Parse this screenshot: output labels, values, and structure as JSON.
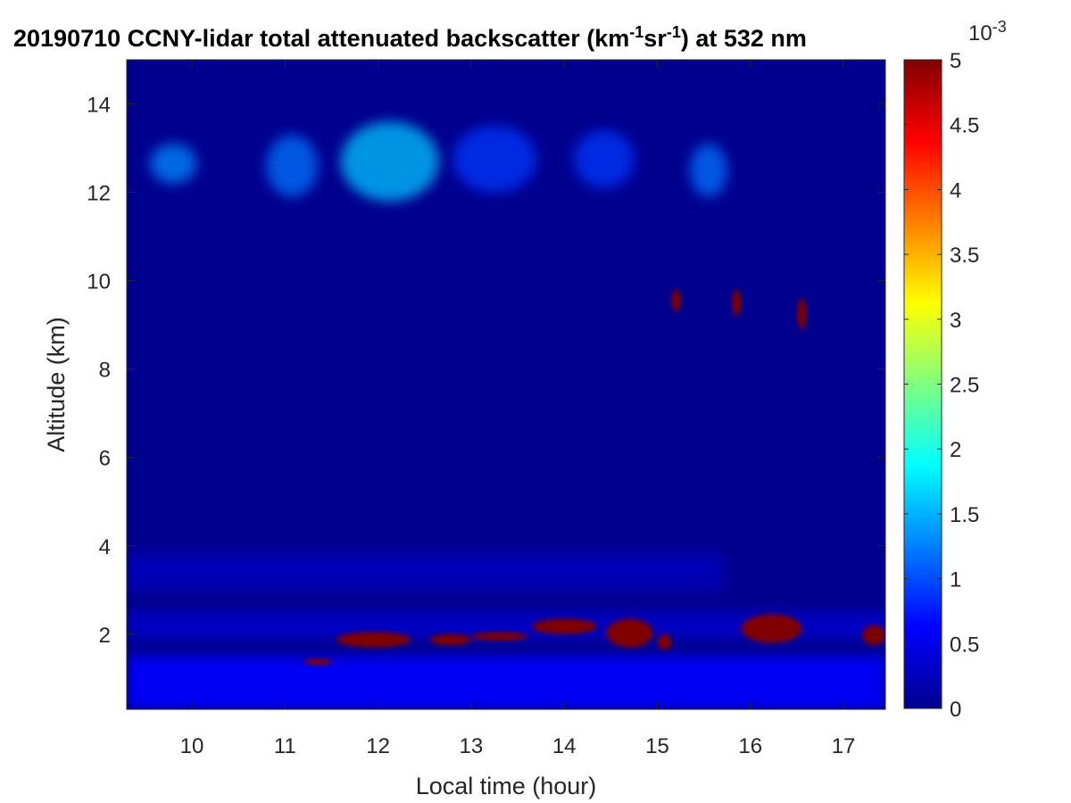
{
  "chart_data": {
    "type": "heatmap",
    "title": {
      "main": "20190710 CCNY-lidar total attenuated backscatter (km",
      "sup1": "-1",
      "mid": "sr",
      "sup2": "-1",
      "end": ") at 532 nm"
    },
    "xlabel": "Local time (hour)",
    "ylabel": "Altitude (km)",
    "xlim": [
      9.3,
      17.45
    ],
    "ylim": [
      0.3,
      15
    ],
    "xticks": [
      10,
      11,
      12,
      13,
      14,
      15,
      16,
      17
    ],
    "yticks": [
      2,
      4,
      6,
      8,
      10,
      12,
      14
    ],
    "colorbar": {
      "colormap": "jet",
      "range": [
        0,
        5
      ],
      "ticks": [
        "0",
        "0.5",
        "1",
        "1.5",
        "2",
        "2.5",
        "3",
        "3.5",
        "4",
        "4.5",
        "5"
      ],
      "exponent_base": "10",
      "exponent": "-3"
    },
    "features": [
      {
        "kind": "boundary_layer",
        "x": [
          9.3,
          17.45
        ],
        "y": [
          0.3,
          1.5
        ],
        "value": 0.6
      },
      {
        "kind": "aerosol_layer",
        "x": [
          9.3,
          17.45
        ],
        "y": [
          1.9,
          2.5
        ],
        "value": 0.5
      },
      {
        "kind": "aerosol_layer",
        "x": [
          9.3,
          15.7
        ],
        "y": [
          3.0,
          3.8
        ],
        "value": 0.4
      },
      {
        "kind": "cirrus",
        "x": [
          9.55,
          10.05
        ],
        "y": [
          12.2,
          13.1
        ],
        "value": 1.3
      },
      {
        "kind": "cirrus",
        "x": [
          10.8,
          11.35
        ],
        "y": [
          11.9,
          13.3
        ],
        "value": 1.2
      },
      {
        "kind": "cirrus",
        "x": [
          11.6,
          12.65
        ],
        "y": [
          11.8,
          13.6
        ],
        "value": 1.6
      },
      {
        "kind": "cirrus",
        "x": [
          12.8,
          13.7
        ],
        "y": [
          12.0,
          13.5
        ],
        "value": 0.9
      },
      {
        "kind": "cirrus",
        "x": [
          14.1,
          14.75
        ],
        "y": [
          12.1,
          13.4
        ],
        "value": 0.9
      },
      {
        "kind": "cirrus",
        "x": [
          15.35,
          15.75
        ],
        "y": [
          11.9,
          13.1
        ],
        "value": 1.2
      },
      {
        "kind": "cloud",
        "x": [
          15.15,
          15.25
        ],
        "y": [
          9.3,
          9.8
        ],
        "value": 5
      },
      {
        "kind": "cloud",
        "x": [
          15.8,
          15.9
        ],
        "y": [
          9.2,
          9.8
        ],
        "value": 5
      },
      {
        "kind": "cloud",
        "x": [
          16.5,
          16.6
        ],
        "y": [
          8.9,
          9.6
        ],
        "value": 5
      },
      {
        "kind": "cloud",
        "x": [
          11.2,
          11.5
        ],
        "y": [
          1.3,
          1.45
        ],
        "value": 5
      },
      {
        "kind": "cloud",
        "x": [
          11.55,
          12.35
        ],
        "y": [
          1.7,
          2.05
        ],
        "value": 5
      },
      {
        "kind": "cloud",
        "x": [
          12.55,
          13.0
        ],
        "y": [
          1.75,
          2.0
        ],
        "value": 5
      },
      {
        "kind": "cloud",
        "x": [
          13.0,
          13.6
        ],
        "y": [
          1.85,
          2.05
        ],
        "value": 5
      },
      {
        "kind": "cloud",
        "x": [
          13.65,
          14.35
        ],
        "y": [
          2.0,
          2.35
        ],
        "value": 5
      },
      {
        "kind": "cloud",
        "x": [
          14.45,
          14.95
        ],
        "y": [
          1.7,
          2.35
        ],
        "value": 5
      },
      {
        "kind": "cloud",
        "x": [
          15.0,
          15.15
        ],
        "y": [
          1.65,
          2.0
        ],
        "value": 5
      },
      {
        "kind": "cloud",
        "x": [
          15.9,
          16.55
        ],
        "y": [
          1.8,
          2.45
        ],
        "value": 5
      },
      {
        "kind": "cloud",
        "x": [
          17.2,
          17.45
        ],
        "y": [
          1.75,
          2.2
        ],
        "value": 5
      }
    ]
  }
}
